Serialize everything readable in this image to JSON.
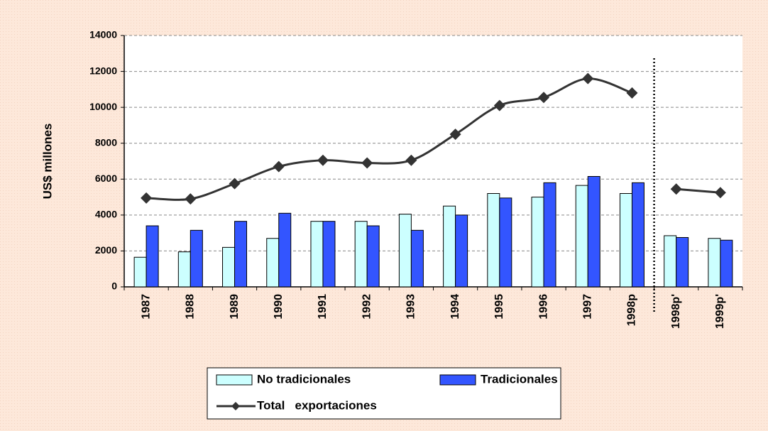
{
  "chart_data": {
    "type": "bar_line",
    "y_label": "US$ millones",
    "categories": [
      "1987",
      "1988",
      "1989",
      "1990",
      "1991",
      "1992",
      "1993",
      "1994",
      "1995",
      "1996",
      "1997",
      "1998p",
      "1998p'",
      "1999p'"
    ],
    "series": [
      {
        "name": "No tradicionales",
        "type": "bar",
        "color": "#ccffff",
        "values": [
          1650,
          1950,
          2200,
          2700,
          3650,
          3650,
          4050,
          4500,
          5200,
          5000,
          5650,
          5200,
          2850,
          2700
        ]
      },
      {
        "name": "Tradicionales",
        "type": "bar",
        "color": "#3355ff",
        "values": [
          3400,
          3150,
          3650,
          4100,
          3650,
          3400,
          3150,
          4000,
          4950,
          5800,
          6150,
          5800,
          2750,
          2600
        ]
      },
      {
        "name": "Total   exportaciones",
        "type": "line",
        "color": "#333333",
        "values": [
          4950,
          4900,
          5750,
          6700,
          7050,
          6900,
          7050,
          8500,
          10100,
          10550,
          11600,
          10800,
          5450,
          5250
        ]
      }
    ],
    "divider_after": "1998p",
    "ylim": [
      0,
      14000
    ],
    "yticks": [
      0,
      2000,
      4000,
      6000,
      8000,
      10000,
      12000,
      14000
    ],
    "grid": true
  }
}
